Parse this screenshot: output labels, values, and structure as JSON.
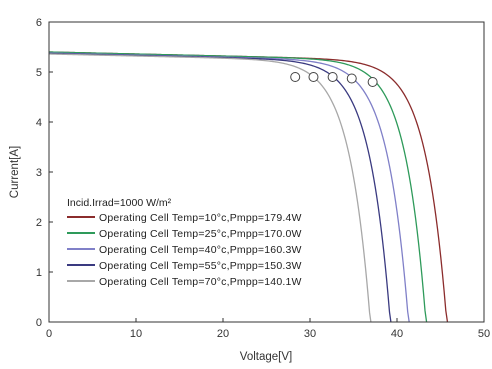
{
  "chart_data": {
    "type": "line",
    "xlabel": "Voltage[V]",
    "ylabel": "Current[A]",
    "xlim": [
      0,
      50
    ],
    "ylim": [
      0,
      6
    ],
    "xticks": [
      "0",
      "10",
      "20",
      "30",
      "40",
      "50"
    ],
    "yticks": [
      "0",
      "1",
      "2",
      "3",
      "4",
      "5",
      "6"
    ],
    "grid": false,
    "legend_position": "bottom-left",
    "legend_title": "Incid.Irrad=1000 W/m²",
    "series": [
      {
        "name": "Operating Cell Temp=10°c,Pmpp=179.4W",
        "color": "#8b2c2c",
        "isc": 5.3,
        "voc": 45.8,
        "knee": 36.2,
        "mpp": [
          37.2,
          4.8
        ]
      },
      {
        "name": "Operating Cell Temp=25°c,Pmpp=170.0W",
        "color": "#2e9a5a",
        "isc": 5.3,
        "voc": 43.4,
        "knee": 34.0,
        "mpp": [
          34.8,
          4.87
        ]
      },
      {
        "name": "Operating Cell Temp=40°c,Pmpp=160.3W",
        "color": "#8080c8",
        "isc": 5.28,
        "voc": 41.4,
        "knee": 31.8,
        "mpp": [
          32.6,
          4.9
        ]
      },
      {
        "name": "Operating Cell Temp=55°c,Pmpp=150.3W",
        "color": "#3a3a80",
        "isc": 5.27,
        "voc": 39.3,
        "knee": 29.8,
        "mpp": [
          30.4,
          4.9
        ]
      },
      {
        "name": "Operating Cell Temp=70°c,Pmpp=140.1W",
        "color": "#a8a8a8",
        "isc": 5.26,
        "voc": 37.0,
        "knee": 27.5,
        "mpp": [
          28.3,
          4.9
        ]
      }
    ]
  }
}
